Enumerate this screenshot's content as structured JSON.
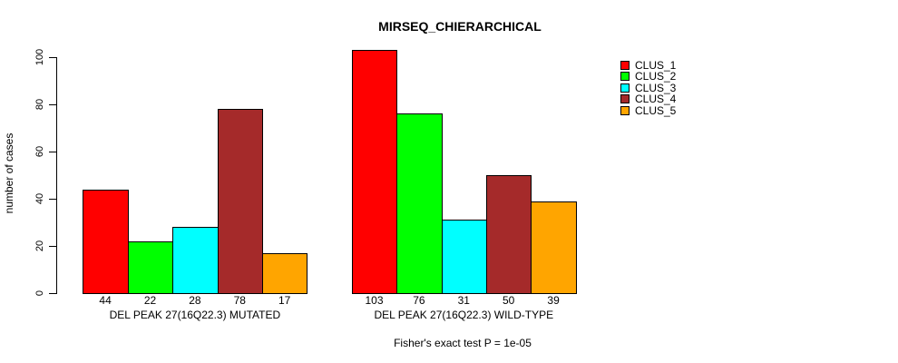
{
  "chart_data": {
    "type": "bar",
    "title": "MIRSEQ_CHIERARCHICAL",
    "ylabel": "number of cases",
    "xlabel": "",
    "yticks": [
      0,
      20,
      40,
      60,
      80,
      100
    ],
    "ylim": [
      0,
      104
    ],
    "grid": false,
    "legend_position": "right-outside",
    "show_value_labels": true,
    "background": "#ffffff",
    "axis_color": "#000000",
    "series": [
      {
        "name": "CLUS_1",
        "color": "#FF0000"
      },
      {
        "name": "CLUS_2",
        "color": "#00FF00"
      },
      {
        "name": "CLUS_3",
        "color": "#00FFFF"
      },
      {
        "name": "CLUS_4",
        "color": "#A52A2A"
      },
      {
        "name": "CLUS_5",
        "color": "#FFA500"
      }
    ],
    "groups": [
      {
        "label": "DEL PEAK 27(16Q22.3) MUTATED",
        "values": [
          44,
          22,
          28,
          78,
          17
        ]
      },
      {
        "label": "DEL PEAK 27(16Q22.3) WILD-TYPE",
        "values": [
          103,
          76,
          31,
          50,
          39
        ]
      }
    ],
    "annotation": "Fisher's exact test P = 1e-05"
  }
}
